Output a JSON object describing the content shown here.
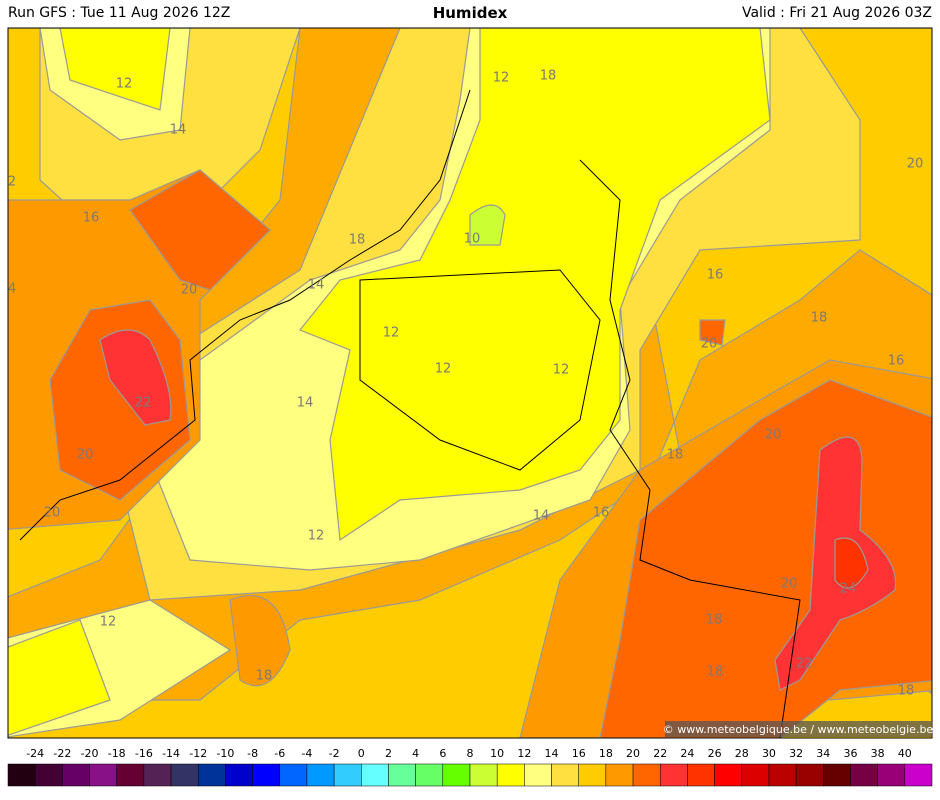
{
  "header": {
    "left": "Run GFS : Tue 11 Aug 2026 12Z",
    "title": "Humidex",
    "right": "Valid : Fri 21 Aug 2026 03Z"
  },
  "contour_labels": [
    12,
    14,
    2,
    16,
    18,
    10,
    12,
    18,
    20,
    14,
    4,
    12,
    12,
    12,
    16,
    18,
    20,
    20,
    16,
    22,
    14,
    20,
    18,
    20,
    20,
    14,
    16,
    12,
    20,
    24,
    18,
    12,
    18,
    18,
    22,
    18
  ],
  "copyright": "© www.meteobelgique.be / www.meteobelgie.be",
  "legend": {
    "ticks": [
      -24,
      -22,
      -20,
      -18,
      -16,
      -14,
      -12,
      -10,
      -8,
      -6,
      -4,
      -2,
      0,
      2,
      4,
      6,
      8,
      10,
      12,
      14,
      16,
      18,
      20,
      22,
      24,
      26,
      28,
      30,
      32,
      34,
      36,
      38,
      40
    ],
    "colors": [
      "#220011",
      "#440033",
      "#660066",
      "#881188",
      "#660033",
      "#552255",
      "#333366",
      "#003399",
      "#0000cc",
      "#0000ff",
      "#0066ff",
      "#0099ff",
      "#33ccff",
      "#66ffff",
      "#66ff99",
      "#66ff66",
      "#66ff00",
      "#ccff33",
      "#ffff00",
      "#ffff80",
      "#ffe040",
      "#ffcc00",
      "#ff9900",
      "#ff6600",
      "#ff3333",
      "#ff3300",
      "#ff0000",
      "#dd0000",
      "#bb0000",
      "#990000",
      "#660000",
      "#770044",
      "#990077",
      "#cc00cc"
    ]
  }
}
